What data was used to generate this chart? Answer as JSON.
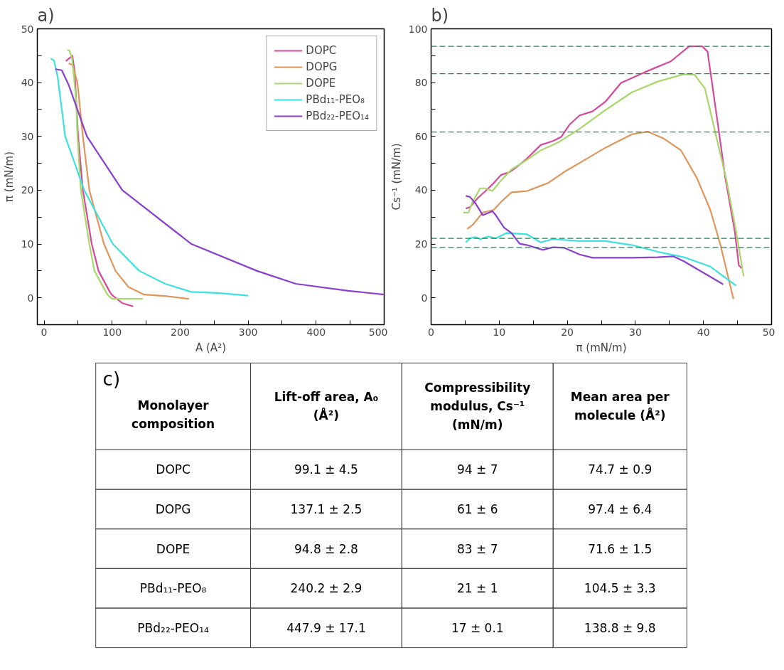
{
  "chart_data": [
    {
      "type": "line",
      "title": "a)",
      "xlabel": "A (A²)",
      "ylabel": "π (mN/m)",
      "xlim": [
        -10,
        500
      ],
      "ylim": [
        -5,
        50
      ],
      "xticks": [
        0,
        {
          "value": 50,
          "label": null
        },
        100,
        {
          "value": 150,
          "label": null
        },
        200,
        {
          "value": 250,
          "label": null
        },
        300,
        {
          "value": 350,
          "label": null
        },
        400,
        {
          "value": 450,
          "label": null
        },
        500
      ],
      "yticks": [
        {
          "value": -5,
          "label": null
        },
        0,
        {
          "value": 5,
          "label": null
        },
        10,
        {
          "value": 15,
          "label": null
        },
        20,
        {
          "value": 25,
          "label": null
        },
        30,
        {
          "value": 35,
          "label": null
        },
        40,
        {
          "value": 45,
          "label": null
        },
        50
      ],
      "grid": false,
      "legend": "top right",
      "series": [
        {
          "name": "DOPC",
          "color": "#d6489a",
          "x": [
            32,
            41.5,
            45,
            47,
            50,
            57,
            70,
            80,
            97,
            100,
            115,
            131
          ],
          "values": [
            44,
            45,
            42,
            37,
            30,
            20,
            10,
            5,
            1,
            0.5,
            -1,
            -1.6
          ]
        },
        {
          "name": "DOPG",
          "color": "#e0965a",
          "x": [
            36,
            41.5,
            49,
            57,
            66.5,
            88,
            105,
            124,
            147,
            180,
            213
          ],
          "values": [
            43.6,
            43.3,
            40,
            30,
            20,
            10,
            5,
            2,
            0.6,
            0.3,
            -0.2
          ]
        },
        {
          "name": "DOPE",
          "color": "#a8d86a",
          "x": [
            34,
            37,
            41,
            47,
            49,
            54,
            66.5,
            74,
            93,
            100,
            145
          ],
          "values": [
            46,
            46,
            44.6,
            37,
            30,
            20,
            10,
            5,
            0.6,
            -0.2,
            -0.2
          ]
        },
        {
          "name": "PBd₁₁-PEO₈",
          "color": "#3fe0e0",
          "x": [
            9.6,
            14.6,
            20,
            31,
            59,
            101,
            140,
            178,
            216,
            255,
            300
          ],
          "values": [
            44.5,
            44.1,
            41,
            30,
            20,
            10,
            5,
            2.6,
            1.1,
            0.9,
            0.4
          ]
        },
        {
          "name": "PBd₂₂-PEO₁₄",
          "color": "#8a3fd0",
          "x": [
            16.5,
            26,
            36,
            63,
            115,
            216.5,
            313,
            370,
            447,
            500
          ],
          "values": [
            42.5,
            42.3,
            39.6,
            30,
            20,
            10,
            5,
            2.6,
            1.3,
            0.6
          ]
        }
      ]
    },
    {
      "type": "line",
      "title": "b)",
      "xlabel": "π (mN/m)",
      "ylabel": "Cs⁻¹ (mN/m)",
      "xlim": [
        0,
        50
      ],
      "ylim": [
        -10,
        100
      ],
      "xticks": [
        0,
        {
          "value": 5,
          "label": null
        },
        10,
        {
          "value": 15,
          "label": null
        },
        20,
        {
          "value": 25,
          "label": null
        },
        30,
        {
          "value": 35,
          "label": null
        },
        40,
        {
          "value": 45,
          "label": null
        },
        50
      ],
      "yticks": [
        {
          "value": -10,
          "label": null
        },
        0,
        {
          "value": 10,
          "label": null
        },
        20,
        {
          "value": 30,
          "label": null
        },
        40,
        {
          "value": 50,
          "label": null
        },
        60,
        {
          "value": 70,
          "label": null
        },
        80,
        {
          "value": 90,
          "label": null
        },
        100
      ],
      "grid": false,
      "ref_lines": [
        {
          "axis": "y",
          "value": 93.5,
          "color": "#1f8a50",
          "line_style": "dashed"
        },
        {
          "axis": "y",
          "value": 83.3,
          "color": "#1f8a50",
          "line_style": "dashed"
        },
        {
          "axis": "y",
          "value": 61.6,
          "color": "#1f8a50",
          "line_style": "dashed"
        },
        {
          "axis": "y",
          "value": 22.1,
          "color": "#1f8a50",
          "line_style": "dashed"
        },
        {
          "axis": "y",
          "value": 18.7,
          "color": "#1f8a50",
          "line_style": "dashed"
        }
      ],
      "series": [
        {
          "color": "#d6489a",
          "x": [
            5.1,
            5.7,
            6.9,
            8,
            9.2,
            10.3,
            11.5,
            12.6,
            14.1,
            16.1,
            17.9,
            19.1,
            20.3,
            21.8,
            23.7,
            25.6,
            27.9,
            31.4,
            35.2,
            37.9,
            39.8,
            40.6,
            42.1,
            43.2,
            44.6,
            45.2,
            45.6
          ],
          "values": [
            33.2,
            33.7,
            37.2,
            39.7,
            42.7,
            45.7,
            46.7,
            48.7,
            51.8,
            56.8,
            58.3,
            59.8,
            64.3,
            67.8,
            69.3,
            72.9,
            79.9,
            83.9,
            87.9,
            93.5,
            93.5,
            91.5,
            64.8,
            44.7,
            24.6,
            12,
            11
          ]
        },
        {
          "color": "#e0965a",
          "x": [
            5.3,
            6.1,
            7.6,
            9.2,
            10.3,
            11.8,
            14.1,
            17.2,
            19.5,
            22.6,
            25.6,
            29.5,
            31.8,
            34.1,
            36.7,
            39,
            41,
            42.5,
            44.4
          ],
          "values": [
            25.6,
            27.1,
            31.7,
            32.7,
            35.7,
            39.2,
            39.7,
            42.7,
            46.7,
            51.3,
            55.8,
            60.8,
            61.8,
            59.3,
            54.8,
            44.7,
            32.7,
            19.6,
            -0.5
          ]
        },
        {
          "color": "#a8d86a",
          "x": [
            4.75,
            5.5,
            6.1,
            7.2,
            8,
            9,
            10.3,
            11.8,
            14.1,
            16.1,
            18.7,
            21.8,
            25.6,
            29.5,
            33.3,
            37.1,
            38.7,
            40.2,
            41.7,
            43.3,
            44.8,
            45.9
          ],
          "values": [
            31.7,
            31.7,
            35.7,
            40.7,
            40.7,
            39.7,
            43.7,
            47.7,
            51.3,
            54.8,
            57.8,
            62.8,
            69.8,
            76.4,
            80.4,
            83.1,
            82.9,
            77.9,
            61.8,
            44.7,
            24.6,
            8
          ]
        },
        {
          "color": "#3fe0e0",
          "x": [
            5.1,
            5.7,
            6.5,
            7.2,
            8.4,
            9.5,
            11.1,
            14.1,
            16.1,
            17.9,
            21.8,
            25.6,
            29.5,
            33.3,
            37.1,
            41,
            44.8
          ],
          "values": [
            20.6,
            22.1,
            22.6,
            21.8,
            22.8,
            22.1,
            24.1,
            23.6,
            20.6,
            21.8,
            21.1,
            21.1,
            19.6,
            17.1,
            15.1,
            11.6,
            4.5
          ]
        },
        {
          "color": "#8a3fd0",
          "x": [
            5.1,
            5.7,
            6.5,
            7.6,
            9,
            9.5,
            10.7,
            11.8,
            13,
            14.1,
            16.4,
            17.9,
            19.5,
            21.8,
            23.7,
            29.5,
            33.3,
            35.6,
            37.1,
            42.9
          ],
          "values": [
            37.9,
            37.5,
            35.2,
            30.7,
            32.2,
            30.7,
            26.1,
            24.1,
            20.1,
            19.6,
            17.8,
            18.8,
            18.6,
            16.1,
            14.9,
            14.9,
            15.1,
            15.4,
            13.6,
            5
          ]
        }
      ]
    },
    {
      "type": "other",
      "title": "c)",
      "annotations": [
        "Monolayer composition",
        "Lift-off area, A₀ (Å²)",
        "Compressibility modulus, Cs⁻¹ (mN/m)",
        "Mean area per molecule (Å²)",
        "DOPC",
        "99.1 ± 4.5",
        "94 ± 7",
        "74.7 ± 0.9",
        "DOPG",
        "137.1 ± 2.5",
        "61 ± 6",
        "97.4 ± 6.4",
        "DOPE",
        "94.8 ± 2.8",
        "83 ± 7",
        "71.6 ± 1.5",
        "PBd₁₁-PEO₈",
        "240.2 ± 2.9",
        "21 ± 1",
        "104.5 ± 3.3",
        "PBd₂₂-PEO₁₄",
        "447.9 ± 17.1",
        "17 ± 0.1",
        "138.8 ± 9.8"
      ]
    }
  ]
}
